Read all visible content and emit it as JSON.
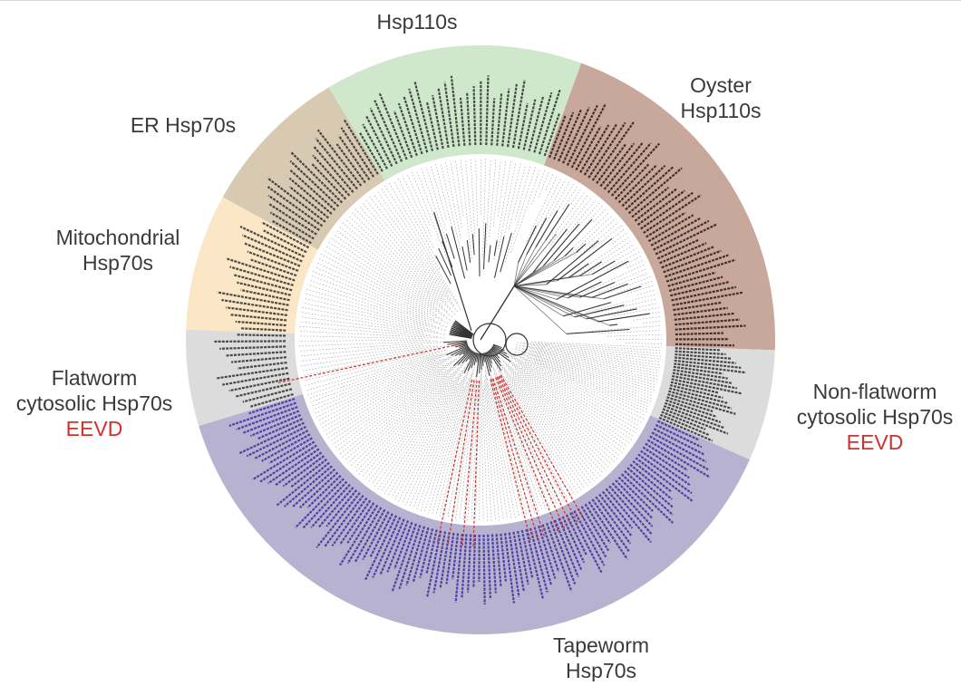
{
  "figure": {
    "clades": [
      {
        "key": "hsp110",
        "lines": [
          "Hsp110s"
        ],
        "color": "#cfe8cc",
        "leaf_color": "#2e2e2e",
        "leaves": 32
      },
      {
        "key": "oyster_hsp110",
        "lines": [
          "Oyster",
          "Hsp110s"
        ],
        "color": "#c9a89c",
        "leaf_color": "#2a1a14",
        "leaves": 50
      },
      {
        "key": "nonflatworm_cytosolic",
        "lines": [
          "Non-flatworm",
          "cytosolic Hsp70s"
        ],
        "motif": "EEVD",
        "color": "#dcdcdc",
        "leaf_color": "#2e2e2e",
        "leaves": 24
      },
      {
        "key": "tapeworm_hsp70",
        "lines": [
          "Tapeworm",
          "Hsp70s"
        ],
        "color": "#b7b2cf",
        "leaf_color": "#3b2f9a",
        "leaves": 110
      },
      {
        "key": "flatworm_cytosolic",
        "lines": [
          "Flatworm",
          "cytosolic Hsp70s"
        ],
        "motif": "EEVD",
        "color": "#dcdcdc",
        "leaf_color": "#2e2e2e",
        "leaves": 12
      },
      {
        "key": "mitochondrial",
        "lines": [
          "Mitochondrial",
          "Hsp70s"
        ],
        "color": "#fbe6c6",
        "leaf_color": "#2e2e2e",
        "leaves": 18
      },
      {
        "key": "er_hsp70",
        "lines": [
          "ER Hsp70s"
        ],
        "color": "#d8c9b2",
        "leaf_color": "#2e2e2e",
        "leaves": 20
      }
    ],
    "colors": {
      "label_text": "#3a3a3a",
      "motif_text": "#d0312d",
      "branch": "#333333",
      "leader": "#9a9a9a",
      "highlight_branch": "#d0312d"
    }
  }
}
